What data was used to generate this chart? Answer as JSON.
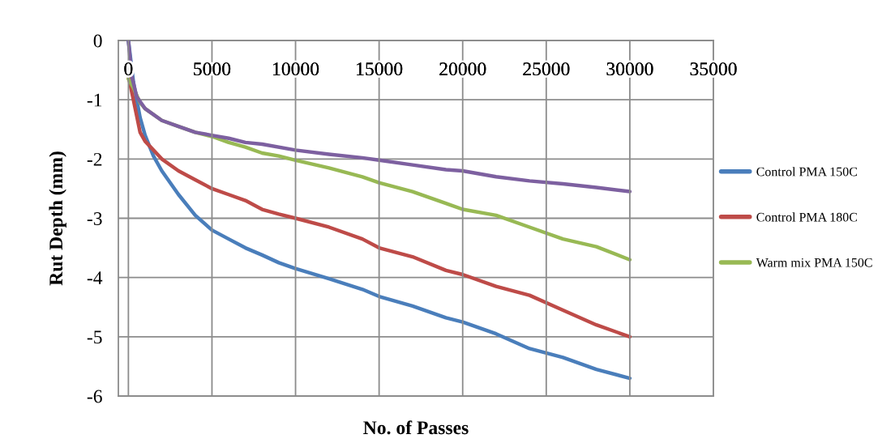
{
  "chart_data": {
    "type": "line",
    "xlabel": "No. of Passes",
    "ylabel": "Rut Depth (mm)",
    "xlim": [
      -600,
      35000
    ],
    "xticks": [
      0,
      5000,
      10000,
      15000,
      20000,
      25000,
      30000,
      35000
    ],
    "ylim": [
      -6,
      0
    ],
    "yticks": [
      -6,
      -5,
      -4,
      -3,
      -2,
      -1,
      0
    ],
    "grid": true,
    "legend": "right",
    "marker": "none",
    "line_style": "solid",
    "series": [
      {
        "name": "Control PMA 150C",
        "color": "#4a7ebb",
        "x": [
          0,
          300,
          700,
          1000,
          1500,
          2000,
          3000,
          4000,
          5000,
          6000,
          7000,
          8000,
          9000,
          10000,
          12000,
          14000,
          15000,
          17000,
          19000,
          20000,
          22000,
          24000,
          26000,
          28000,
          30000
        ],
        "values": [
          0,
          -0.7,
          -1.3,
          -1.6,
          -1.95,
          -2.2,
          -2.6,
          -2.95,
          -3.2,
          -3.35,
          -3.5,
          -3.62,
          -3.75,
          -3.85,
          -4.02,
          -4.2,
          -4.32,
          -4.48,
          -4.68,
          -4.75,
          -4.95,
          -5.2,
          -5.35,
          -5.55,
          -5.7
        ]
      },
      {
        "name": "Control PMA 180C",
        "color": "#be4b48",
        "x": [
          0,
          300,
          700,
          1000,
          2000,
          3000,
          4000,
          5000,
          6000,
          7000,
          8000,
          9000,
          10000,
          12000,
          14000,
          15000,
          17000,
          19000,
          20000,
          22000,
          24000,
          26000,
          28000,
          30000
        ],
        "values": [
          -0.6,
          -1.0,
          -1.55,
          -1.7,
          -2.0,
          -2.2,
          -2.35,
          -2.5,
          -2.6,
          -2.7,
          -2.85,
          -2.93,
          -3.0,
          -3.15,
          -3.35,
          -3.5,
          -3.65,
          -3.88,
          -3.95,
          -4.15,
          -4.3,
          -4.55,
          -4.8,
          -5.0
        ]
      },
      {
        "name": "Warm mix PMA 150C",
        "color": "#98b954",
        "x": [
          0,
          300,
          700,
          1000,
          2000,
          3000,
          4000,
          5000,
          6000,
          7000,
          8000,
          9000,
          10000,
          12000,
          14000,
          15000,
          17000,
          19000,
          20000,
          22000,
          24000,
          26000,
          28000,
          30000
        ],
        "values": [
          -0.65,
          -0.8,
          -1.05,
          -1.15,
          -1.35,
          -1.45,
          -1.55,
          -1.62,
          -1.72,
          -1.8,
          -1.9,
          -1.95,
          -2.02,
          -2.15,
          -2.3,
          -2.4,
          -2.55,
          -2.75,
          -2.85,
          -2.95,
          -3.15,
          -3.35,
          -3.48,
          -3.7
        ]
      },
      {
        "color": "#7d60a0",
        "x": [
          0,
          200,
          500,
          1000,
          2000,
          3000,
          4000,
          5000,
          6000,
          7000,
          8000,
          10000,
          12000,
          14000,
          15000,
          17000,
          19000,
          20000,
          22000,
          24000,
          26000,
          28000,
          30000
        ],
        "values": [
          0,
          -0.6,
          -0.95,
          -1.15,
          -1.35,
          -1.45,
          -1.55,
          -1.6,
          -1.65,
          -1.72,
          -1.75,
          -1.85,
          -1.92,
          -1.98,
          -2.02,
          -2.1,
          -2.18,
          -2.2,
          -2.3,
          -2.37,
          -2.42,
          -2.48,
          -2.55
        ]
      }
    ]
  }
}
